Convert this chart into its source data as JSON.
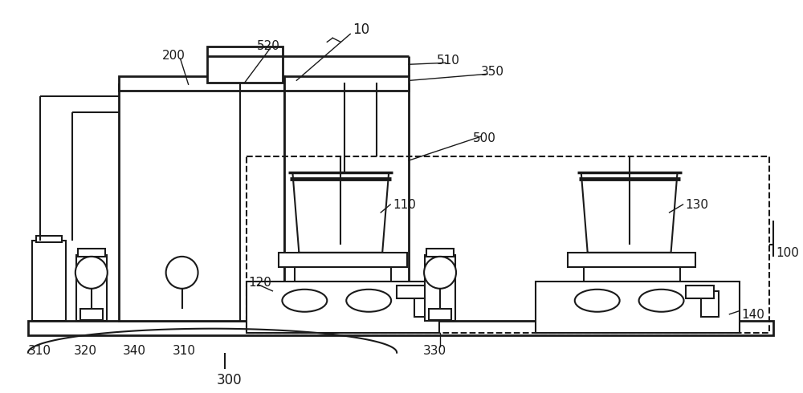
{
  "bg_color": "#ffffff",
  "line_color": "#1a1a1a",
  "fig_width": 10.0,
  "fig_height": 4.9,
  "dpi": 100
}
